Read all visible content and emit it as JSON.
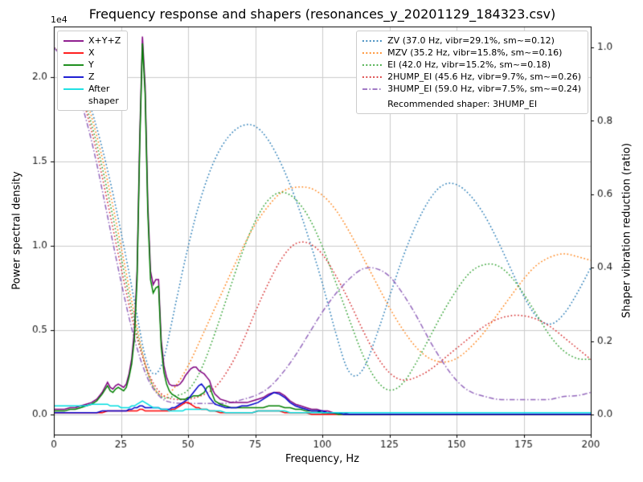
{
  "title": "Frequency response and shapers (resonances_y_20201129_184323.csv)",
  "legend_psd": {
    "items": [
      {
        "label": "X+Y+Z",
        "color": "#800080",
        "dash": "solid"
      },
      {
        "label": "X",
        "color": "#ff0000",
        "dash": "solid"
      },
      {
        "label": "Y",
        "color": "#008000",
        "dash": "solid"
      },
      {
        "label": "Z",
        "color": "#0000cd",
        "dash": "solid"
      },
      {
        "label": "After\nshaper",
        "color": "#00dde0",
        "dash": "solid"
      }
    ]
  },
  "legend_shapers": {
    "items": [
      {
        "label": "ZV (37.0 Hz, vibr=29.1%, sm~=0.12)",
        "color": "#1f77b4",
        "dash": "dotted"
      },
      {
        "label": "MZV (35.2 Hz, vibr=15.8%, sm~=0.16)",
        "color": "#ff7f0e",
        "dash": "dotted"
      },
      {
        "label": "EI (42.0 Hz, vibr=15.2%, sm~=0.18)",
        "color": "#2ca02c",
        "dash": "dotted"
      },
      {
        "label": "2HUMP_EI (45.6 Hz, vibr=9.7%, sm~=0.26)",
        "color": "#d62728",
        "dash": "dotted"
      },
      {
        "label": "3HUMP_EI (59.0 Hz, vibr=7.5%, sm~=0.24)",
        "color": "#9467bd",
        "dash": "dashdot"
      }
    ],
    "note": "Recommended shaper: 3HUMP_EI"
  },
  "chart_data": {
    "type": "line",
    "x_axis": {
      "label": "Frequency, Hz",
      "min": 0,
      "max": 200,
      "ticks": [
        0,
        25,
        50,
        75,
        100,
        125,
        150,
        175,
        200
      ]
    },
    "y_left": {
      "label": "Power spectral density",
      "offset_text": "1e4",
      "min": -0.12,
      "max": 2.3,
      "ticks": [
        0,
        0.5,
        1,
        1.5,
        2
      ],
      "units_scale": "1e4"
    },
    "y_right": {
      "label": "Shaper vibration reduction (ratio)",
      "min": -0.055,
      "max": 1.057,
      "ticks": [
        0,
        0.2,
        0.4,
        0.6,
        0.8,
        1
      ]
    },
    "recommended_shaper": "3HUMP_EI",
    "psd_x_hz": [
      0,
      2,
      4,
      6,
      8,
      10,
      12,
      14,
      16,
      18,
      20,
      21,
      22,
      23,
      24,
      25,
      26,
      27,
      28,
      29,
      30,
      31,
      32,
      33,
      34,
      35,
      36,
      37,
      38,
      39,
      40,
      41,
      42,
      43,
      44,
      45,
      46,
      47,
      48,
      49,
      50,
      51,
      52,
      53,
      54,
      55,
      56,
      57,
      58,
      59,
      60,
      62,
      64,
      66,
      68,
      70,
      72,
      74,
      76,
      78,
      80,
      82,
      84,
      86,
      88,
      90,
      92,
      94,
      96,
      98,
      100,
      102,
      104,
      106,
      108,
      110,
      115,
      120,
      130,
      140,
      150,
      160,
      170,
      180,
      190,
      200
    ],
    "psd_series": [
      {
        "name": "X+Y+Z",
        "color": "#800080",
        "values": [
          0.03,
          0.03,
          0.03,
          0.04,
          0.04,
          0.05,
          0.06,
          0.07,
          0.09,
          0.13,
          0.19,
          0.16,
          0.15,
          0.17,
          0.18,
          0.17,
          0.16,
          0.18,
          0.24,
          0.33,
          0.5,
          0.85,
          1.65,
          2.24,
          1.95,
          1.25,
          0.85,
          0.77,
          0.8,
          0.8,
          0.44,
          0.29,
          0.22,
          0.18,
          0.17,
          0.17,
          0.17,
          0.18,
          0.2,
          0.23,
          0.25,
          0.27,
          0.28,
          0.28,
          0.26,
          0.25,
          0.24,
          0.22,
          0.2,
          0.15,
          0.12,
          0.09,
          0.08,
          0.07,
          0.07,
          0.07,
          0.07,
          0.08,
          0.09,
          0.1,
          0.12,
          0.13,
          0.13,
          0.11,
          0.08,
          0.06,
          0.05,
          0.04,
          0.03,
          0.03,
          0.02,
          0.02,
          0.01,
          0.01,
          0.01,
          0.0,
          0.0,
          0.0,
          0.0,
          0.0,
          0.0,
          0.0,
          0.0,
          0.0,
          0.0,
          0.0
        ]
      },
      {
        "name": "X",
        "color": "#ff0000",
        "values": [
          0.01,
          0.01,
          0.01,
          0.01,
          0.01,
          0.01,
          0.01,
          0.01,
          0.01,
          0.01,
          0.02,
          0.02,
          0.02,
          0.02,
          0.02,
          0.02,
          0.02,
          0.02,
          0.02,
          0.02,
          0.02,
          0.02,
          0.03,
          0.03,
          0.02,
          0.02,
          0.02,
          0.02,
          0.02,
          0.02,
          0.02,
          0.02,
          0.02,
          0.02,
          0.03,
          0.03,
          0.04,
          0.05,
          0.06,
          0.07,
          0.07,
          0.06,
          0.05,
          0.04,
          0.04,
          0.03,
          0.03,
          0.03,
          0.02,
          0.02,
          0.02,
          0.01,
          0.01,
          0.01,
          0.01,
          0.01,
          0.01,
          0.01,
          0.02,
          0.02,
          0.02,
          0.02,
          0.02,
          0.01,
          0.01,
          0.01,
          0.01,
          0.01,
          0.0,
          0.0,
          0.0,
          0.0,
          0.0,
          0.0,
          0.0,
          0.0,
          0.0,
          0.0,
          0.0,
          0.0,
          0.0,
          0.0,
          0.0,
          0.0,
          0.0,
          0.0
        ]
      },
      {
        "name": "Y",
        "color": "#008000",
        "values": [
          0.02,
          0.02,
          0.02,
          0.03,
          0.03,
          0.04,
          0.05,
          0.06,
          0.08,
          0.12,
          0.17,
          0.14,
          0.13,
          0.15,
          0.16,
          0.15,
          0.14,
          0.16,
          0.22,
          0.3,
          0.45,
          0.8,
          1.6,
          2.2,
          1.9,
          1.2,
          0.8,
          0.72,
          0.75,
          0.76,
          0.4,
          0.25,
          0.18,
          0.14,
          0.12,
          0.11,
          0.1,
          0.09,
          0.09,
          0.09,
          0.1,
          0.1,
          0.11,
          0.11,
          0.11,
          0.12,
          0.13,
          0.16,
          0.17,
          0.12,
          0.08,
          0.06,
          0.05,
          0.04,
          0.04,
          0.04,
          0.04,
          0.04,
          0.04,
          0.04,
          0.05,
          0.05,
          0.05,
          0.04,
          0.04,
          0.03,
          0.03,
          0.02,
          0.02,
          0.02,
          0.01,
          0.01,
          0.01,
          0.0,
          0.0,
          0.0,
          0.0,
          0.0,
          0.0,
          0.0,
          0.0,
          0.0,
          0.0,
          0.0,
          0.0,
          0.0
        ]
      },
      {
        "name": "Z",
        "color": "#0000cd",
        "values": [
          0.01,
          0.01,
          0.01,
          0.01,
          0.01,
          0.01,
          0.01,
          0.01,
          0.01,
          0.02,
          0.02,
          0.02,
          0.02,
          0.02,
          0.02,
          0.02,
          0.02,
          0.02,
          0.03,
          0.03,
          0.04,
          0.04,
          0.05,
          0.05,
          0.04,
          0.04,
          0.04,
          0.04,
          0.04,
          0.04,
          0.03,
          0.03,
          0.03,
          0.03,
          0.04,
          0.04,
          0.05,
          0.06,
          0.07,
          0.08,
          0.09,
          0.11,
          0.13,
          0.15,
          0.17,
          0.18,
          0.16,
          0.13,
          0.1,
          0.08,
          0.06,
          0.05,
          0.04,
          0.04,
          0.04,
          0.05,
          0.05,
          0.06,
          0.07,
          0.09,
          0.11,
          0.13,
          0.12,
          0.1,
          0.07,
          0.05,
          0.04,
          0.03,
          0.02,
          0.02,
          0.02,
          0.01,
          0.01,
          0.01,
          0.0,
          0.0,
          0.0,
          0.0,
          0.0,
          0.0,
          0.0,
          0.0,
          0.0,
          0.0,
          0.0,
          0.0
        ]
      },
      {
        "name": "After shaper",
        "color": "#00dde0",
        "values": [
          0.05,
          0.05,
          0.05,
          0.05,
          0.05,
          0.05,
          0.05,
          0.06,
          0.06,
          0.06,
          0.06,
          0.05,
          0.05,
          0.05,
          0.05,
          0.04,
          0.04,
          0.04,
          0.04,
          0.05,
          0.05,
          0.06,
          0.07,
          0.08,
          0.07,
          0.06,
          0.05,
          0.04,
          0.04,
          0.04,
          0.03,
          0.03,
          0.03,
          0.02,
          0.02,
          0.02,
          0.02,
          0.02,
          0.02,
          0.03,
          0.03,
          0.03,
          0.03,
          0.03,
          0.03,
          0.03,
          0.03,
          0.03,
          0.02,
          0.02,
          0.02,
          0.02,
          0.01,
          0.01,
          0.01,
          0.01,
          0.01,
          0.01,
          0.02,
          0.02,
          0.02,
          0.02,
          0.02,
          0.02,
          0.01,
          0.01,
          0.01,
          0.01,
          0.01,
          0.01,
          0.01,
          0.01,
          0.01,
          0.01,
          0.01,
          0.01,
          0.01,
          0.01,
          0.01,
          0.01,
          0.01,
          0.01,
          0.01,
          0.01,
          0.01,
          0.01
        ]
      }
    ],
    "shaper_x_hz": [
      0,
      5,
      10,
      15,
      20,
      25,
      30,
      35,
      40,
      45,
      50,
      55,
      60,
      65,
      70,
      75,
      80,
      85,
      90,
      95,
      100,
      105,
      110,
      115,
      120,
      125,
      130,
      135,
      140,
      145,
      150,
      155,
      160,
      165,
      170,
      175,
      180,
      185,
      190,
      195,
      200
    ],
    "shaper_series": [
      {
        "name": "ZV",
        "freq_hz": 37.0,
        "vibr_pct": 29.1,
        "smoothing": 0.12,
        "color": "#1f77b4",
        "dash": "dotted",
        "values": [
          1.0,
          0.98,
          0.92,
          0.81,
          0.67,
          0.5,
          0.31,
          0.11,
          0.11,
          0.29,
          0.46,
          0.6,
          0.7,
          0.76,
          0.79,
          0.79,
          0.75,
          0.68,
          0.59,
          0.48,
          0.36,
          0.22,
          0.1,
          0.11,
          0.21,
          0.32,
          0.43,
          0.52,
          0.59,
          0.63,
          0.63,
          0.6,
          0.55,
          0.48,
          0.4,
          0.32,
          0.26,
          0.24,
          0.27,
          0.33,
          0.4
        ]
      },
      {
        "name": "MZV",
        "freq_hz": 35.2,
        "vibr_pct": 15.8,
        "smoothing": 0.16,
        "color": "#ff7f0e",
        "dash": "dotted",
        "values": [
          1.0,
          0.98,
          0.91,
          0.79,
          0.64,
          0.46,
          0.27,
          0.1,
          0.04,
          0.07,
          0.13,
          0.21,
          0.29,
          0.37,
          0.45,
          0.52,
          0.57,
          0.61,
          0.62,
          0.62,
          0.6,
          0.56,
          0.5,
          0.43,
          0.36,
          0.29,
          0.23,
          0.18,
          0.15,
          0.14,
          0.15,
          0.18,
          0.22,
          0.27,
          0.32,
          0.37,
          0.41,
          0.43,
          0.44,
          0.43,
          0.42
        ]
      },
      {
        "name": "EI",
        "freq_hz": 42.0,
        "vibr_pct": 15.2,
        "smoothing": 0.18,
        "color": "#2ca02c",
        "dash": "dotted",
        "values": [
          1.0,
          0.97,
          0.89,
          0.77,
          0.61,
          0.43,
          0.25,
          0.1,
          0.04,
          0.05,
          0.06,
          0.12,
          0.22,
          0.33,
          0.44,
          0.53,
          0.59,
          0.61,
          0.59,
          0.54,
          0.46,
          0.36,
          0.26,
          0.16,
          0.09,
          0.06,
          0.08,
          0.14,
          0.21,
          0.28,
          0.34,
          0.39,
          0.41,
          0.41,
          0.38,
          0.33,
          0.27,
          0.21,
          0.17,
          0.15,
          0.15
        ]
      },
      {
        "name": "2HUMP_EI",
        "freq_hz": 45.6,
        "vibr_pct": 9.7,
        "smoothing": 0.26,
        "color": "#d62728",
        "dash": "dotted",
        "values": [
          1.0,
          0.97,
          0.88,
          0.75,
          0.58,
          0.4,
          0.23,
          0.11,
          0.05,
          0.04,
          0.04,
          0.05,
          0.07,
          0.12,
          0.19,
          0.28,
          0.36,
          0.43,
          0.47,
          0.47,
          0.44,
          0.38,
          0.31,
          0.23,
          0.16,
          0.11,
          0.09,
          0.1,
          0.12,
          0.15,
          0.18,
          0.21,
          0.24,
          0.26,
          0.27,
          0.27,
          0.26,
          0.24,
          0.21,
          0.18,
          0.15
        ]
      },
      {
        "name": "3HUMP_EI",
        "freq_hz": 59.0,
        "vibr_pct": 7.5,
        "smoothing": 0.24,
        "color": "#9467bd",
        "dash": "dashdot",
        "values": [
          1.0,
          0.96,
          0.86,
          0.72,
          0.54,
          0.36,
          0.2,
          0.09,
          0.04,
          0.03,
          0.03,
          0.03,
          0.03,
          0.03,
          0.04,
          0.05,
          0.07,
          0.11,
          0.16,
          0.22,
          0.28,
          0.33,
          0.37,
          0.4,
          0.4,
          0.38,
          0.33,
          0.27,
          0.2,
          0.14,
          0.09,
          0.06,
          0.05,
          0.04,
          0.04,
          0.04,
          0.04,
          0.04,
          0.05,
          0.05,
          0.06
        ]
      }
    ]
  }
}
